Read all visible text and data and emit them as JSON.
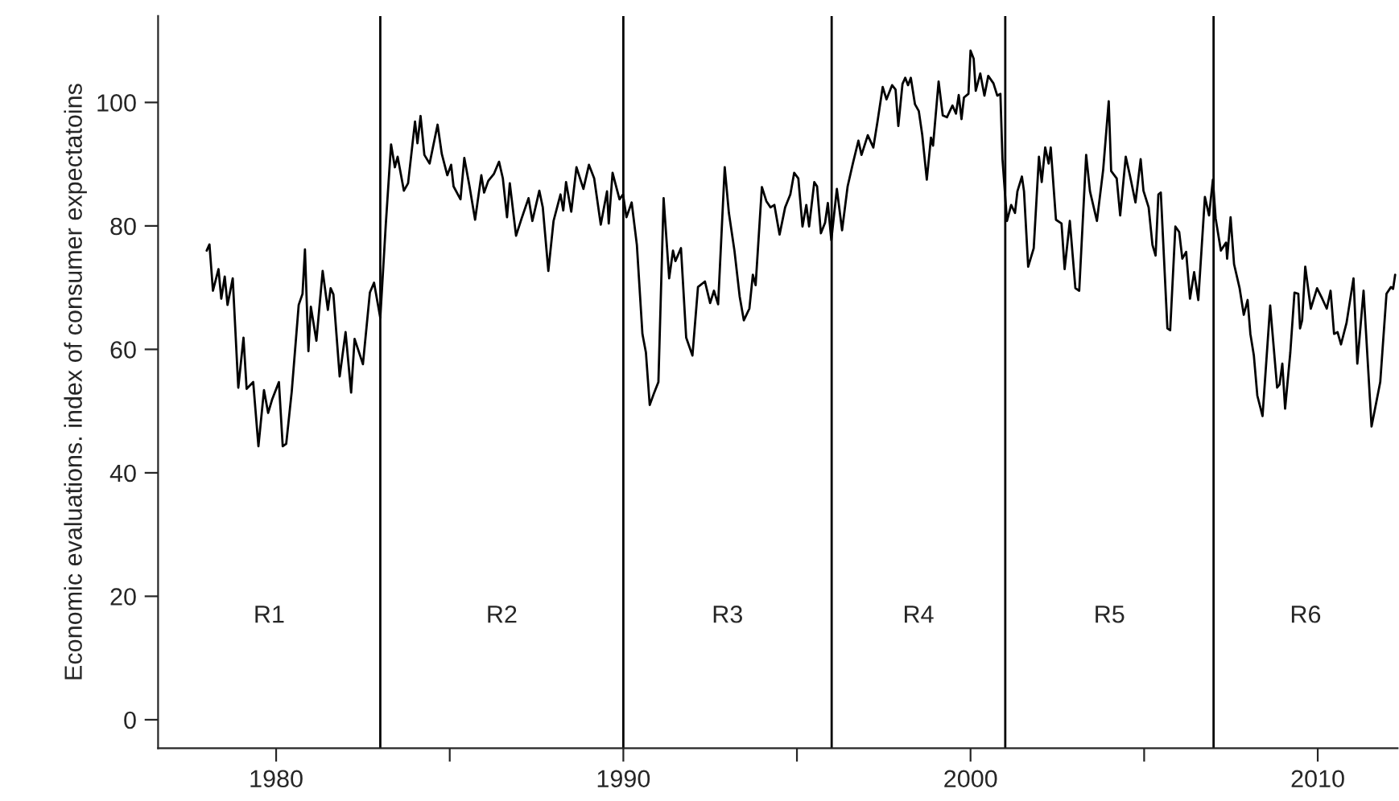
{
  "chart_data": {
    "type": "line",
    "ylabel": "Economic evaluations. index of consumer expectatoins",
    "xlim": [
      1976.6,
      2012.3
    ],
    "ylim": [
      -4.6,
      114
    ],
    "xticks": [
      1980,
      {
        "value": 1985,
        "label": null
      },
      1990,
      {
        "value": 1995,
        "label": null
      },
      2000,
      {
        "value": 2005,
        "label": null
      },
      2010
    ],
    "yticks": [
      0,
      20,
      40,
      60,
      80,
      100
    ],
    "grid": false,
    "legend": false,
    "marker": "none",
    "line_style": "solid",
    "ref_lines": [
      {
        "axis": "x",
        "value": 1983,
        "color": "#000000"
      },
      {
        "axis": "x",
        "value": 1990,
        "color": "#000000"
      },
      {
        "axis": "x",
        "value": 1996,
        "color": "#000000"
      },
      {
        "axis": "x",
        "value": 2001,
        "color": "#000000"
      },
      {
        "axis": "x",
        "value": 2007,
        "color": "#000000"
      }
    ],
    "annotations": [
      "R1",
      "R2",
      "R3",
      "R4",
      "R5",
      "R6"
    ],
    "series": [
      {
        "color": "#000000",
        "x": [
          1978.0,
          1978.08,
          1978.18,
          1978.34,
          1978.42,
          1978.52,
          1978.6,
          1978.75,
          1978.91,
          1979.06,
          1979.15,
          1979.34,
          1979.49,
          1979.65,
          1979.77,
          1979.88,
          1980.08,
          1980.19,
          1980.29,
          1980.45,
          1980.65,
          1980.76,
          1980.83,
          1980.93,
          1981.0,
          1981.16,
          1981.34,
          1981.49,
          1981.57,
          1981.65,
          1981.83,
          1982.0,
          1982.16,
          1982.26,
          1982.5,
          1982.7,
          1982.82,
          1983.0,
          1983.16,
          1983.31,
          1983.42,
          1983.5,
          1983.68,
          1983.8,
          1984.0,
          1984.07,
          1984.16,
          1984.27,
          1984.42,
          1984.65,
          1984.77,
          1984.93,
          1985.04,
          1985.11,
          1985.31,
          1985.42,
          1985.57,
          1985.73,
          1985.91,
          1985.99,
          1986.11,
          1986.27,
          1986.42,
          1986.53,
          1986.65,
          1986.73,
          1986.91,
          1987.07,
          1987.27,
          1987.38,
          1987.58,
          1987.68,
          1987.84,
          1987.99,
          1988.19,
          1988.27,
          1988.35,
          1988.5,
          1988.65,
          1988.85,
          1989.01,
          1989.16,
          1989.35,
          1989.53,
          1989.58,
          1989.69,
          1989.89,
          1989.99,
          1990.09,
          1990.24,
          1990.39,
          1990.55,
          1990.65,
          1990.76,
          1990.89,
          1991.01,
          1991.16,
          1991.32,
          1991.43,
          1991.5,
          1991.66,
          1991.81,
          1991.99,
          1992.15,
          1992.35,
          1992.5,
          1992.61,
          1992.73,
          1992.92,
          1993.04,
          1993.2,
          1993.35,
          1993.47,
          1993.63,
          1993.73,
          1993.81,
          1993.99,
          1994.12,
          1994.24,
          1994.35,
          1994.5,
          1994.66,
          1994.81,
          1994.92,
          1995.04,
          1995.16,
          1995.27,
          1995.35,
          1995.5,
          1995.58,
          1995.69,
          1995.81,
          1995.89,
          1995.99,
          1996.15,
          1996.3,
          1996.46,
          1996.61,
          1996.77,
          1996.86,
          1997.04,
          1997.2,
          1997.32,
          1997.47,
          1997.58,
          1997.74,
          1997.84,
          1997.92,
          1998.04,
          1998.12,
          1998.2,
          1998.28,
          1998.4,
          1998.51,
          1998.61,
          1998.74,
          1998.86,
          1998.92,
          1999.08,
          1999.2,
          1999.32,
          1999.48,
          1999.58,
          1999.66,
          1999.74,
          1999.81,
          1999.94,
          2000.0,
          2000.09,
          2000.15,
          2000.28,
          2000.4,
          2000.51,
          2000.66,
          2000.77,
          2000.86,
          2000.92,
          2001.05,
          2001.17,
          2001.28,
          2001.35,
          2001.48,
          2001.54,
          2001.66,
          2001.82,
          2001.97,
          2002.05,
          2002.15,
          2002.25,
          2002.31,
          2002.46,
          2002.62,
          2002.71,
          2002.86,
          2003.02,
          2003.13,
          2003.33,
          2003.44,
          2003.64,
          2003.82,
          2003.98,
          2004.05,
          2004.21,
          2004.31,
          2004.47,
          2004.59,
          2004.75,
          2004.9,
          2004.98,
          2005.13,
          2005.24,
          2005.33,
          2005.41,
          2005.48,
          2005.67,
          2005.75,
          2005.9,
          2006.01,
          2006.1,
          2006.21,
          2006.32,
          2006.44,
          2006.56,
          2006.75,
          2006.87,
          2006.98,
          2007.06,
          2007.21,
          2007.36,
          2007.39,
          2007.49,
          2007.59,
          2007.75,
          2007.87,
          2007.98,
          2008.06,
          2008.16,
          2008.26,
          2008.41,
          2008.63,
          2008.83,
          2008.9,
          2008.98,
          2009.06,
          2009.21,
          2009.33,
          2009.44,
          2009.49,
          2009.55,
          2009.64,
          2009.8,
          2009.98,
          2010.13,
          2010.26,
          2010.37,
          2010.47,
          2010.57,
          2010.67,
          2010.83,
          2011.03,
          2011.14,
          2011.32,
          2011.55,
          2011.8,
          2011.98,
          2012.11,
          2012.17,
          2012.23
        ],
        "values": [
          76.0,
          77.0,
          69.5,
          73.0,
          68.2,
          71.8,
          67.2,
          71.5,
          53.8,
          61.9,
          53.6,
          54.7,
          44.3,
          53.4,
          49.7,
          51.8,
          54.7,
          44.3,
          44.7,
          53.2,
          67.2,
          69.0,
          76.2,
          59.7,
          66.9,
          61.4,
          72.7,
          66.4,
          69.9,
          68.9,
          55.6,
          62.8,
          53.0,
          61.7,
          57.6,
          69.2,
          70.8,
          65.1,
          80.4,
          93.2,
          89.5,
          91.2,
          85.7,
          86.9,
          96.9,
          93.4,
          97.8,
          91.5,
          90.1,
          96.4,
          91.7,
          88.2,
          89.9,
          86.4,
          84.3,
          91.0,
          86.4,
          81.0,
          88.2,
          85.4,
          87.3,
          88.4,
          90.4,
          87.7,
          81.4,
          86.9,
          78.4,
          81.2,
          84.5,
          80.8,
          85.7,
          83.0,
          72.7,
          80.8,
          85.1,
          82.5,
          87.1,
          82.3,
          89.5,
          86.0,
          89.9,
          87.7,
          80.2,
          85.6,
          80.4,
          88.6,
          84.3,
          85.1,
          81.4,
          83.8,
          76.9,
          62.5,
          59.5,
          51.0,
          53.0,
          54.7,
          84.5,
          71.5,
          76.0,
          74.3,
          76.4,
          61.9,
          59.0,
          70.1,
          71.0,
          67.5,
          69.5,
          67.3,
          89.5,
          82.1,
          76.0,
          68.6,
          64.7,
          66.6,
          72.1,
          70.4,
          86.3,
          84.0,
          83.0,
          83.4,
          78.6,
          83.0,
          85.1,
          88.6,
          87.7,
          79.9,
          83.4,
          79.9,
          87.1,
          86.4,
          78.8,
          80.5,
          83.7,
          77.7,
          86.0,
          79.3,
          86.4,
          90.1,
          93.8,
          91.5,
          94.7,
          92.7,
          96.9,
          102.5,
          100.5,
          102.8,
          102.1,
          96.2,
          103.0,
          104.0,
          102.8,
          104.0,
          99.7,
          98.6,
          94.7,
          87.5,
          94.3,
          93.0,
          103.4,
          97.9,
          97.6,
          99.5,
          98.2,
          101.2,
          97.3,
          100.8,
          101.4,
          108.4,
          107.1,
          101.9,
          104.7,
          101.1,
          104.3,
          103.1,
          101.1,
          101.4,
          90.8,
          80.8,
          83.4,
          82.1,
          85.6,
          88.0,
          85.6,
          73.4,
          76.4,
          91.2,
          87.1,
          92.7,
          90.1,
          92.7,
          81.0,
          80.4,
          73.0,
          80.8,
          69.9,
          69.5,
          91.5,
          85.6,
          80.8,
          89.1,
          100.2,
          88.9,
          87.7,
          81.7,
          91.2,
          88.2,
          83.8,
          90.8,
          85.7,
          83.0,
          76.9,
          75.2,
          85.1,
          85.4,
          63.4,
          63.1,
          79.9,
          79.0,
          74.7,
          75.8,
          68.2,
          72.5,
          68.0,
          84.7,
          81.7,
          87.5,
          81.2,
          76.0,
          77.3,
          74.7,
          81.4,
          73.8,
          69.9,
          65.6,
          68.0,
          62.5,
          59.0,
          52.5,
          49.2,
          67.1,
          53.8,
          54.3,
          57.7,
          50.4,
          59.5,
          69.2,
          69.0,
          63.4,
          64.7,
          73.4,
          66.6,
          69.9,
          68.2,
          66.6,
          69.5,
          62.5,
          62.8,
          60.8,
          64.3,
          71.5,
          57.7,
          69.5,
          47.5,
          54.7,
          69.0,
          70.1,
          69.8,
          72.1
        ]
      }
    ]
  }
}
